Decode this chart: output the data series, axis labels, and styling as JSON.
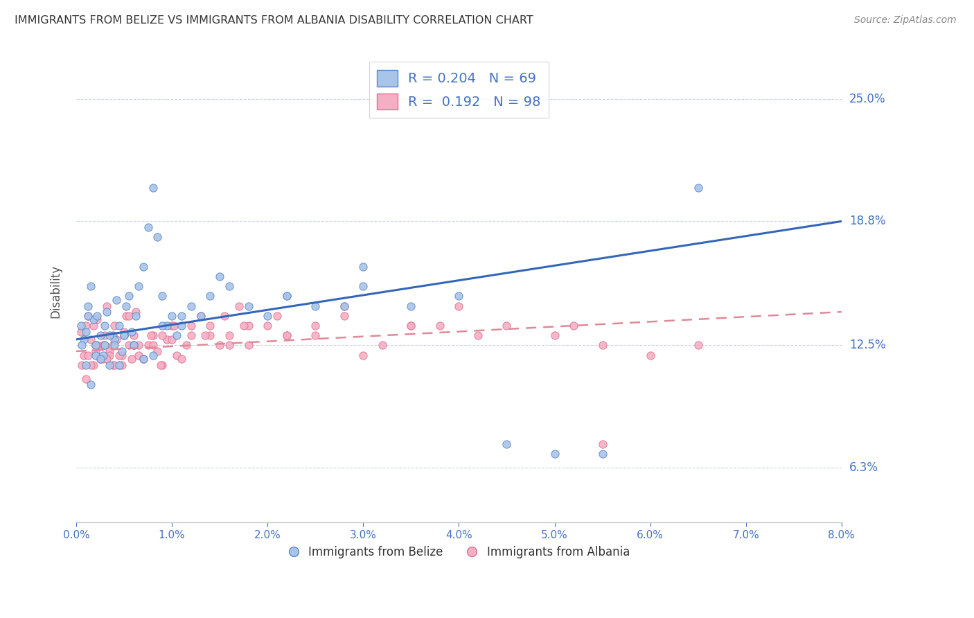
{
  "title": "IMMIGRANTS FROM BELIZE VS IMMIGRANTS FROM ALBANIA DISABILITY CORRELATION CHART",
  "source": "Source: ZipAtlas.com",
  "ylabel": "Disability",
  "xmin": 0.0,
  "xmax": 8.0,
  "ymin": 3.5,
  "ymax": 27.0,
  "yticks": [
    6.3,
    12.5,
    18.8,
    25.0
  ],
  "ytick_labels": [
    "6.3%",
    "12.5%",
    "18.8%",
    "25.0%"
  ],
  "belize_R": 0.204,
  "belize_N": 69,
  "albania_R": 0.192,
  "albania_N": 98,
  "belize_color": "#aac4e8",
  "albania_color": "#f5afc4",
  "belize_edge_color": "#5588cc",
  "albania_edge_color": "#e07090",
  "belize_line_color": "#3366bb",
  "albania_line_color": "#e08898",
  "legend_label_belize": "Immigrants from Belize",
  "legend_label_albania": "Immigrants from Albania",
  "background_color": "#ffffff",
  "grid_color": "#c8d4e8",
  "belize_x": [
    0.05,
    0.08,
    0.1,
    0.12,
    0.15,
    0.18,
    0.2,
    0.22,
    0.25,
    0.28,
    0.3,
    0.32,
    0.35,
    0.38,
    0.4,
    0.42,
    0.45,
    0.48,
    0.5,
    0.52,
    0.55,
    0.58,
    0.6,
    0.62,
    0.65,
    0.7,
    0.75,
    0.8,
    0.85,
    0.9,
    0.95,
    1.0,
    1.05,
    1.1,
    1.2,
    1.3,
    1.4,
    1.6,
    1.8,
    2.0,
    2.2,
    2.5,
    2.8,
    3.0,
    3.5,
    4.0,
    5.0,
    5.5,
    0.06,
    0.1,
    0.15,
    0.2,
    0.25,
    0.3,
    0.35,
    0.4,
    0.45,
    0.5,
    0.6,
    0.7,
    0.8,
    0.9,
    1.1,
    1.5,
    2.2,
    3.0,
    4.5,
    6.5,
    0.12
  ],
  "belize_y": [
    13.5,
    12.8,
    13.2,
    14.5,
    15.5,
    13.8,
    12.5,
    14.0,
    13.0,
    12.0,
    13.5,
    14.2,
    11.5,
    13.0,
    12.8,
    14.8,
    13.5,
    12.2,
    13.0,
    14.5,
    15.0,
    13.2,
    12.5,
    14.0,
    15.5,
    16.5,
    18.5,
    20.5,
    18.0,
    15.0,
    13.5,
    14.0,
    13.0,
    13.5,
    14.5,
    14.0,
    15.0,
    15.5,
    14.5,
    14.0,
    15.0,
    14.5,
    14.5,
    15.5,
    14.5,
    15.0,
    7.0,
    7.0,
    12.5,
    11.5,
    10.5,
    12.0,
    11.8,
    12.5,
    13.0,
    12.5,
    11.5,
    13.0,
    12.5,
    11.8,
    12.0,
    13.5,
    14.0,
    16.0,
    15.0,
    16.5,
    7.5,
    20.5,
    14.0
  ],
  "albania_x": [
    0.05,
    0.08,
    0.1,
    0.12,
    0.15,
    0.18,
    0.2,
    0.22,
    0.25,
    0.28,
    0.3,
    0.32,
    0.35,
    0.38,
    0.4,
    0.42,
    0.45,
    0.48,
    0.5,
    0.52,
    0.55,
    0.58,
    0.6,
    0.62,
    0.65,
    0.7,
    0.75,
    0.8,
    0.85,
    0.9,
    0.95,
    1.0,
    1.05,
    1.1,
    1.2,
    1.3,
    1.4,
    1.5,
    1.6,
    1.7,
    1.8,
    2.0,
    2.2,
    2.5,
    2.8,
    3.0,
    3.5,
    4.0,
    4.5,
    5.0,
    5.5,
    6.0,
    0.06,
    0.1,
    0.15,
    0.2,
    0.25,
    0.3,
    0.35,
    0.4,
    0.45,
    0.5,
    0.6,
    0.7,
    0.8,
    0.9,
    1.0,
    1.2,
    1.4,
    1.6,
    1.8,
    2.2,
    2.8,
    3.5,
    4.2,
    5.2,
    0.12,
    0.18,
    0.22,
    0.28,
    0.38,
    0.48,
    0.55,
    0.65,
    0.78,
    0.88,
    1.02,
    1.15,
    1.35,
    1.55,
    1.75,
    2.1,
    2.5,
    3.2,
    3.8,
    5.5,
    6.5,
    0.32
  ],
  "albania_y": [
    13.2,
    12.0,
    13.5,
    14.0,
    12.8,
    11.5,
    12.5,
    13.8,
    11.8,
    12.5,
    13.0,
    14.5,
    12.2,
    11.5,
    13.5,
    12.8,
    11.5,
    12.0,
    13.2,
    14.0,
    12.5,
    11.8,
    13.0,
    14.2,
    12.0,
    11.8,
    12.5,
    13.0,
    12.2,
    11.5,
    12.8,
    13.5,
    12.0,
    11.8,
    13.0,
    14.0,
    13.5,
    12.5,
    13.0,
    14.5,
    12.5,
    13.5,
    13.0,
    13.0,
    14.5,
    12.0,
    13.5,
    14.5,
    13.5,
    13.0,
    12.5,
    12.0,
    11.5,
    10.8,
    11.5,
    12.2,
    11.8,
    12.5,
    12.0,
    11.5,
    12.0,
    13.0,
    12.5,
    11.8,
    12.5,
    13.0,
    12.8,
    13.5,
    13.0,
    12.5,
    13.5,
    13.0,
    14.0,
    13.5,
    13.0,
    13.5,
    12.0,
    13.5,
    12.5,
    11.8,
    12.5,
    11.5,
    14.0,
    12.5,
    13.0,
    11.5,
    13.5,
    12.5,
    13.0,
    14.0,
    13.5,
    14.0,
    13.5,
    12.5,
    13.5,
    7.5,
    12.5,
    11.8
  ]
}
